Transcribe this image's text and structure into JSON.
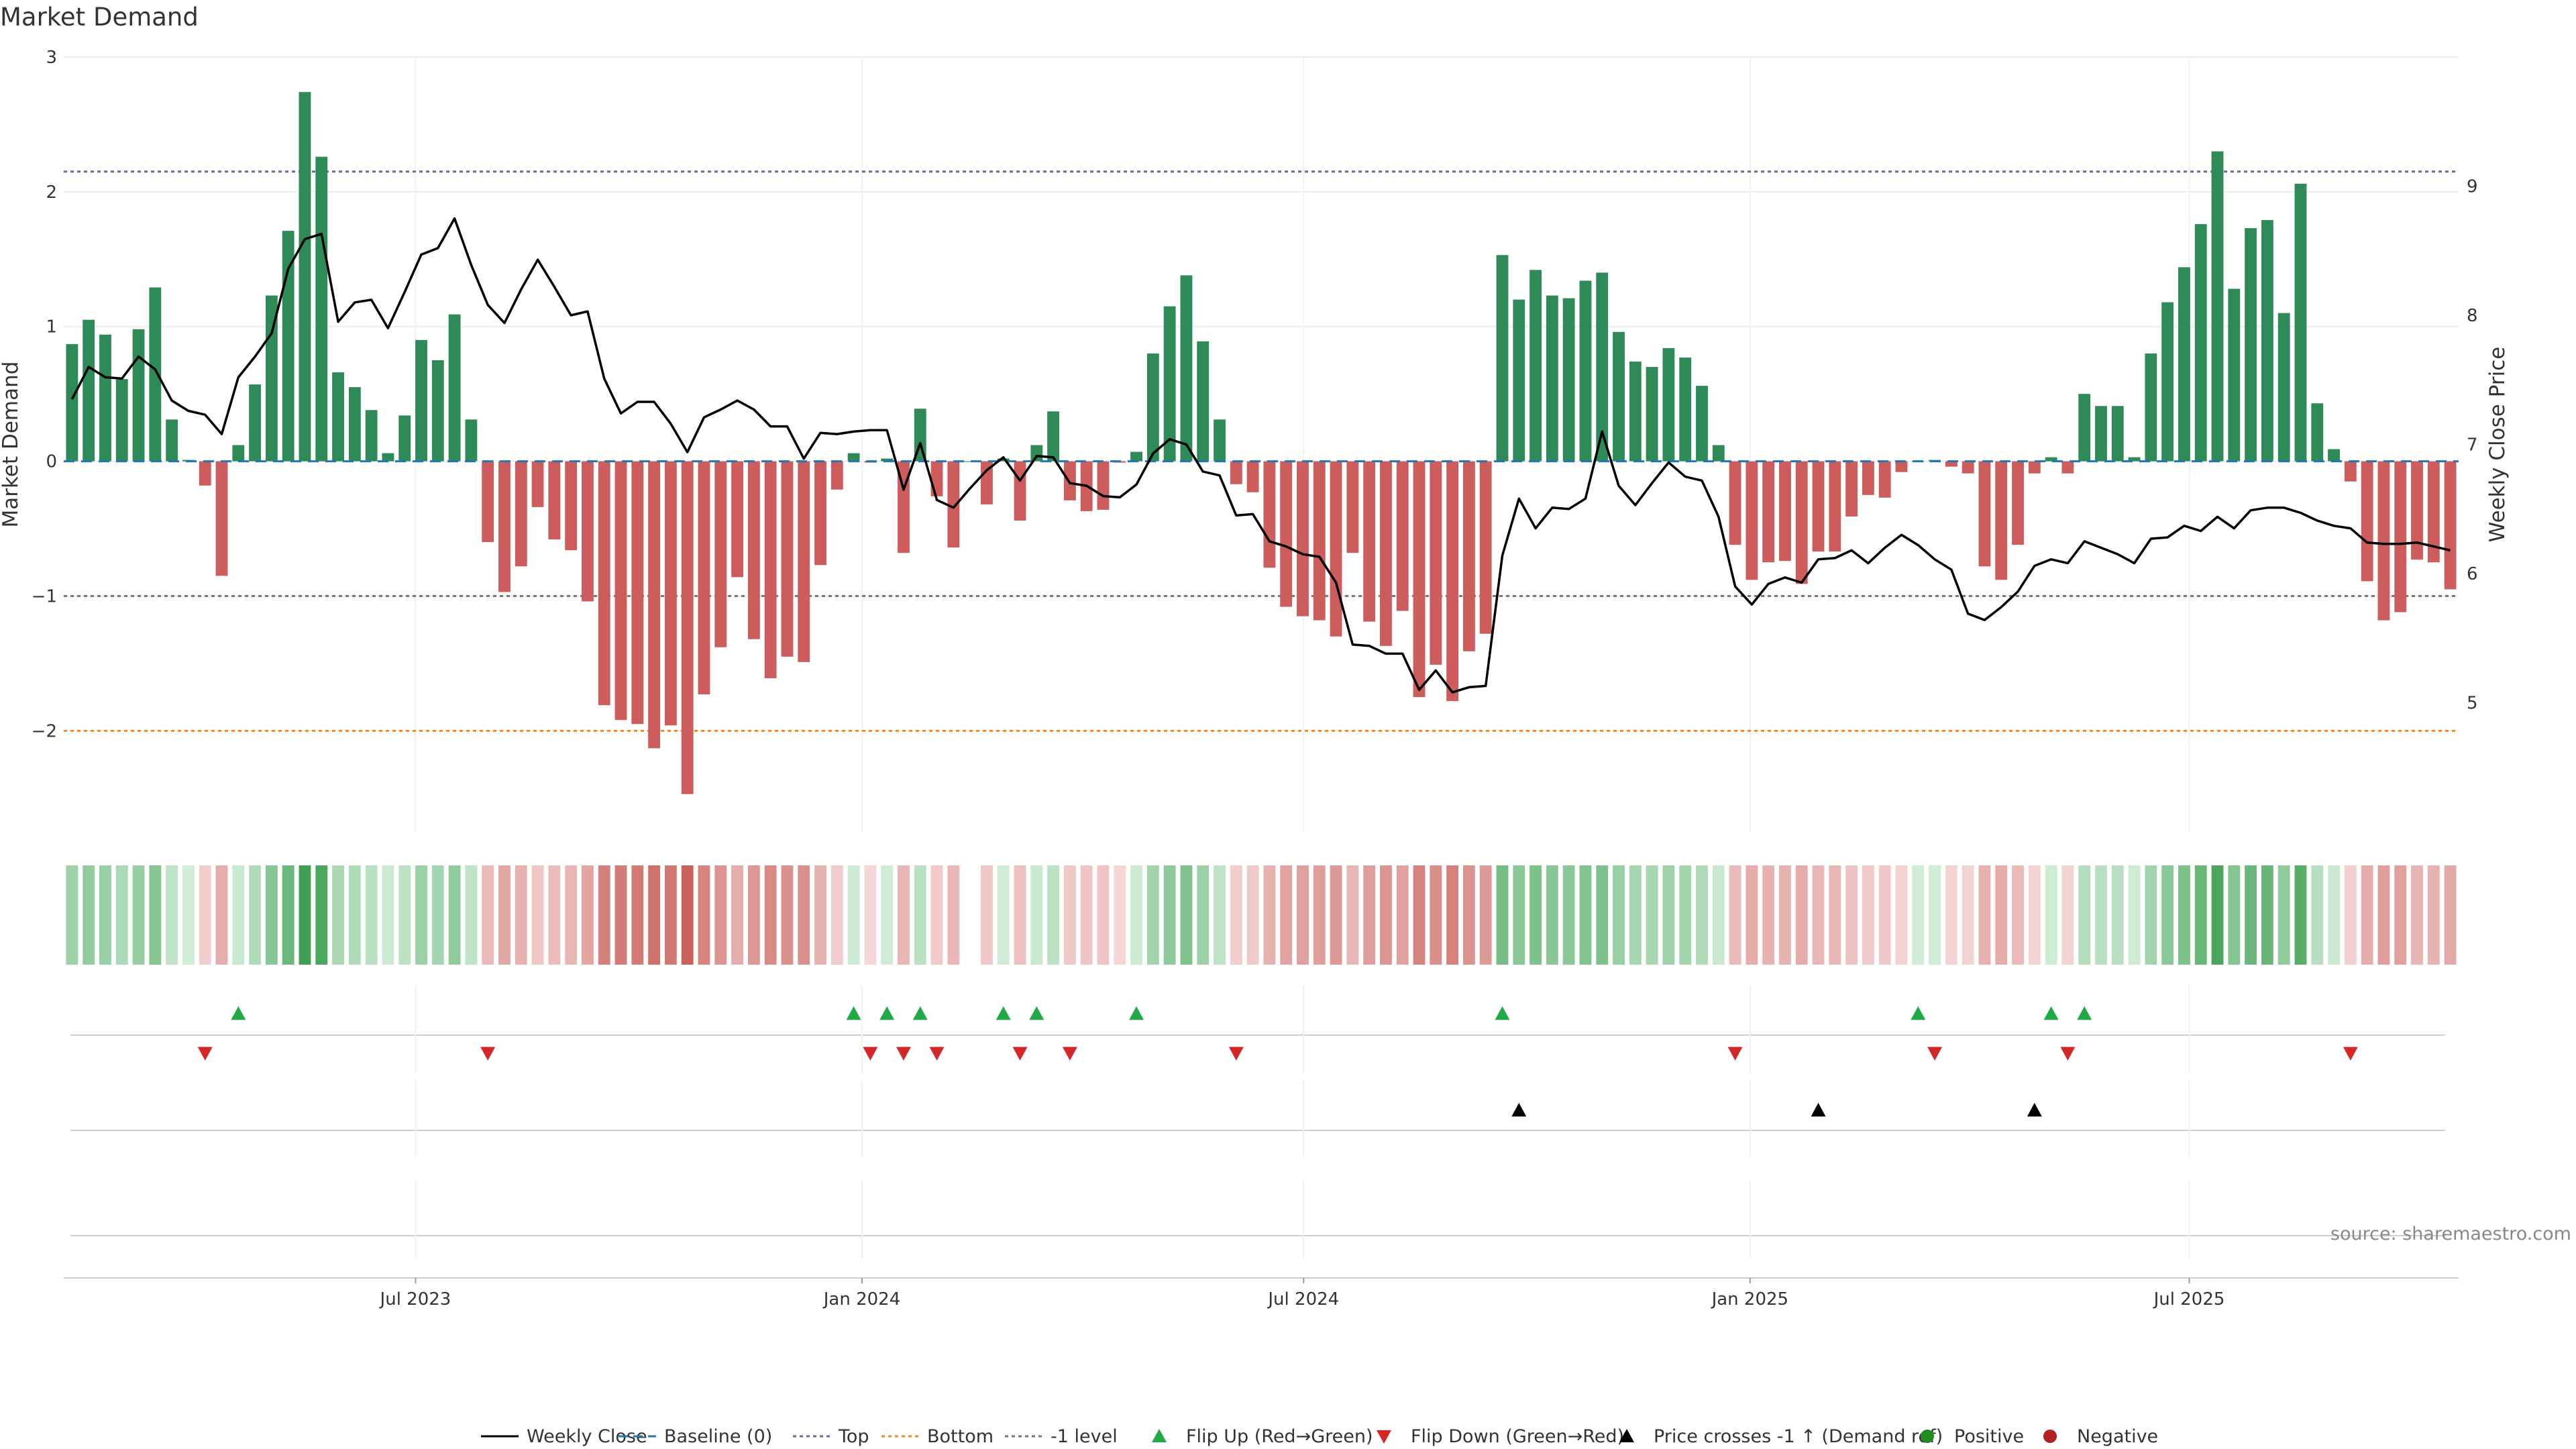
{
  "chart_data": {
    "type": "bar",
    "title": "Market Demand",
    "ylabel": "Market Demand",
    "y2label": "Weekly Close Price",
    "ylim": [
      -2.75,
      3.0
    ],
    "y2lim": [
      4.0,
      10.0
    ],
    "yticks": [
      3,
      2,
      1,
      0,
      -1,
      -2
    ],
    "ytick_labels": [
      "3",
      "2",
      "1",
      "0",
      "−1",
      "−2"
    ],
    "y2ticks": [
      9,
      8,
      7,
      6,
      5
    ],
    "y2tick_labels": [
      "9",
      "8",
      "7",
      "6",
      "5"
    ],
    "x_start": "2023-02-06",
    "x_end": "2025-10-20",
    "xticks": [
      "2023-07-01",
      "2024-01-01",
      "2024-07-01",
      "2025-01-01",
      "2025-07-01"
    ],
    "xtick_labels": [
      "Jul 2023",
      "Jan 2024",
      "Jul 2024",
      "Jan 2025",
      "Jul 2025"
    ],
    "reference_lines": {
      "top": 2.15,
      "bottom": -2.0,
      "minus_one": -1.0,
      "baseline": 0.0
    },
    "grid": true,
    "legend_placement": "bottom",
    "colors": {
      "positive": "#2e8b57",
      "negative": "#cd5c5c",
      "price": "#000000",
      "baseline": "#1f77b4",
      "top": "#6a6a9a",
      "bottom": "#e8901e",
      "minus_one": "#777777",
      "flip_up": "#22a845",
      "flip_down": "#d62728",
      "cross": "#000000",
      "positive_dot": "#228b22",
      "negative_dot": "#b22222"
    },
    "series": [
      {
        "name": "Market Demand",
        "values": [
          0.87,
          1.05,
          0.94,
          0.61,
          0.98,
          1.29,
          0.31,
          0.01,
          -0.18,
          -0.85,
          0.12,
          0.57,
          1.23,
          1.71,
          2.74,
          2.26,
          0.66,
          0.55,
          0.38,
          0.06,
          0.34,
          0.9,
          0.75,
          1.09,
          0.31,
          -0.6,
          -0.97,
          -0.78,
          -0.34,
          -0.58,
          -0.66,
          -1.04,
          -1.81,
          -1.92,
          -1.95,
          -2.13,
          -1.96,
          -2.47,
          -1.73,
          -1.38,
          -0.86,
          -1.32,
          -1.61,
          -1.45,
          -1.49,
          -0.77,
          -0.21,
          0.06,
          -0.01,
          0.02,
          -0.68,
          0.39,
          -0.26,
          -0.64,
          0.0,
          -0.32,
          0.02,
          -0.44,
          0.12,
          0.37,
          -0.29,
          -0.37,
          -0.36,
          -0.01,
          0.07,
          0.8,
          1.15,
          1.38,
          0.89,
          0.31,
          -0.17,
          -0.23,
          -0.79,
          -1.08,
          -1.15,
          -1.18,
          -1.3,
          -0.68,
          -1.19,
          -1.37,
          -1.11,
          -1.75,
          -1.51,
          -1.78,
          -1.41,
          -1.28,
          1.53,
          1.2,
          1.42,
          1.23,
          1.21,
          1.34,
          1.4,
          0.96,
          0.74,
          0.7,
          0.84,
          0.77,
          0.56,
          0.12,
          -0.62,
          -0.88,
          -0.75,
          -0.74,
          -0.91,
          -0.67,
          -0.67,
          -0.41,
          -0.25,
          -0.27,
          -0.08,
          0.0,
          0.01,
          -0.04,
          -0.09,
          -0.78,
          -0.88,
          -0.62,
          -0.09,
          0.03,
          -0.09,
          0.5,
          0.41,
          0.41,
          0.03,
          0.8,
          1.18,
          1.44,
          1.76,
          2.3,
          1.28,
          1.73,
          1.79,
          1.1,
          2.06,
          0.43,
          0.09,
          -0.15,
          -0.89,
          -1.18,
          -1.12,
          -0.73,
          -0.75,
          -0.95
        ]
      },
      {
        "name": "Weekly Close",
        "values": [
          7.35,
          7.6,
          7.52,
          7.51,
          7.68,
          7.58,
          7.34,
          7.26,
          7.23,
          7.08,
          7.52,
          7.68,
          7.86,
          8.36,
          8.59,
          8.63,
          7.95,
          8.1,
          8.12,
          7.9,
          8.18,
          8.47,
          8.52,
          8.75,
          8.39,
          8.08,
          7.94,
          8.2,
          8.43,
          8.22,
          8.0,
          8.03,
          7.51,
          7.24,
          7.33,
          7.33,
          7.16,
          6.94,
          7.21,
          7.27,
          7.34,
          7.27,
          7.14,
          7.14,
          6.89,
          7.09,
          7.08,
          7.1,
          7.11,
          7.11,
          6.65,
          7.01,
          6.57,
          6.51,
          6.66,
          6.8,
          6.9,
          6.72,
          6.91,
          6.9,
          6.7,
          6.68,
          6.6,
          6.59,
          6.69,
          6.93,
          7.04,
          7.0,
          6.79,
          6.76,
          6.45,
          6.46,
          6.25,
          6.21,
          6.15,
          6.13,
          5.93,
          5.45,
          5.44,
          5.38,
          5.38,
          5.1,
          5.25,
          5.08,
          5.12,
          5.13,
          6.14,
          6.58,
          6.35,
          6.51,
          6.5,
          6.58,
          7.1,
          6.68,
          6.53,
          6.7,
          6.86,
          6.75,
          6.72,
          6.44,
          5.9,
          5.76,
          5.92,
          5.97,
          5.93,
          6.11,
          6.12,
          6.18,
          6.08,
          6.2,
          6.3,
          6.22,
          6.11,
          6.03,
          5.69,
          5.64,
          5.74,
          5.86,
          6.06,
          6.11,
          6.08,
          6.25,
          6.2,
          6.15,
          6.08,
          6.27,
          6.28,
          6.37,
          6.33,
          6.44,
          6.35,
          6.49,
          6.51,
          6.51,
          6.47,
          6.41,
          6.37,
          6.35,
          6.24,
          6.23,
          6.23,
          6.24,
          6.21,
          6.18
        ]
      }
    ],
    "heatmap_strip": {
      "values": [
        0.87,
        1.05,
        0.94,
        0.61,
        0.98,
        1.29,
        0.31,
        0.01,
        -0.18,
        -0.85,
        0.12,
        0.57,
        1.23,
        1.71,
        2.74,
        2.26,
        0.66,
        0.55,
        0.38,
        0.06,
        0.34,
        0.9,
        0.75,
        1.09,
        0.31,
        -0.6,
        -0.97,
        -0.78,
        -0.34,
        -0.58,
        -0.66,
        -1.04,
        -1.81,
        -1.92,
        -1.95,
        -2.13,
        -1.96,
        -2.47,
        -1.73,
        -1.38,
        -0.86,
        -1.32,
        -1.61,
        -1.45,
        -1.49,
        -0.77,
        -0.21,
        0.06,
        -0.01,
        0.02,
        -0.68,
        0.39,
        -0.26,
        -0.64,
        null,
        -0.32,
        0.02,
        -0.44,
        0.12,
        0.37,
        -0.29,
        -0.37,
        -0.36,
        -0.01,
        0.07,
        0.8,
        1.15,
        1.38,
        0.89,
        0.31,
        -0.17,
        -0.23,
        -0.79,
        -1.08,
        -1.15,
        -1.18,
        -1.3,
        -0.68,
        -1.19,
        -1.37,
        -1.11,
        -1.75,
        -1.51,
        -1.78,
        -1.41,
        -1.28,
        1.53,
        1.2,
        1.42,
        1.23,
        1.21,
        1.34,
        1.4,
        0.96,
        0.74,
        0.7,
        0.84,
        0.77,
        0.56,
        0.12,
        -0.62,
        -0.88,
        -0.75,
        -0.74,
        -0.91,
        -0.67,
        -0.67,
        -0.41,
        -0.25,
        -0.27,
        -0.08,
        0.0,
        0.01,
        -0.04,
        -0.09,
        -0.78,
        -0.88,
        -0.62,
        -0.09,
        0.03,
        -0.09,
        0.5,
        0.41,
        0.41,
        0.03,
        0.8,
        1.18,
        1.44,
        1.76,
        2.3,
        1.28,
        1.73,
        1.79,
        1.1,
        2.06,
        0.43,
        0.09,
        -0.15,
        -0.89,
        -1.18,
        -1.12,
        -0.73,
        -0.75,
        -0.95
      ]
    },
    "events": {
      "flip_up_weeks": [
        10,
        47,
        49,
        51,
        56,
        58,
        64,
        86,
        111,
        119,
        121
      ],
      "flip_down_weeks": [
        8,
        25,
        48,
        50,
        52,
        57,
        60,
        70,
        100,
        112,
        120,
        137
      ],
      "price_cross_weeks": [
        87,
        105,
        118
      ]
    },
    "source": "source: sharemaestro.com",
    "legend": [
      {
        "label": "Weekly Close",
        "icon": "solid-line"
      },
      {
        "label": "Baseline (0)",
        "icon": "dashed-line"
      },
      {
        "label": "Top",
        "icon": "dotted-line"
      },
      {
        "label": "Bottom",
        "icon": "dotted-line"
      },
      {
        "label": "-1 level",
        "icon": "dotted-line"
      },
      {
        "label": "Flip Up (Red→Green)",
        "icon": "triangle-up"
      },
      {
        "label": "Flip Down (Green→Red)",
        "icon": "triangle-down"
      },
      {
        "label": "Price crosses -1 ↑ (Demand ref)",
        "icon": "triangle-up"
      },
      {
        "label": "Positive",
        "icon": "circle"
      },
      {
        "label": "Negative",
        "icon": "circle"
      }
    ]
  }
}
